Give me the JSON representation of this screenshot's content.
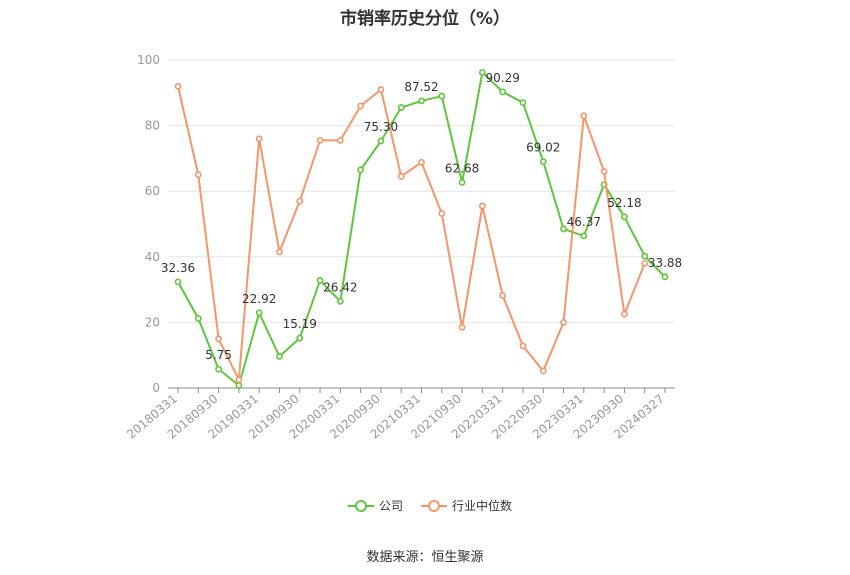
{
  "chart_data": {
    "type": "line",
    "title": "市销率历史分位（%）",
    "xlabel": "",
    "ylabel": "",
    "ylim": [
      0,
      100
    ],
    "yticks": [
      0,
      20,
      40,
      60,
      80,
      100
    ],
    "grid": true,
    "legend_position": "bottom",
    "x": [
      "20180331",
      "20180630",
      "20180930",
      "20181231",
      "20190331",
      "20190630",
      "20190930",
      "20191231",
      "20200331",
      "20200630",
      "20200930",
      "20201231",
      "20210331",
      "20210630",
      "20210930",
      "20211231",
      "20220331",
      "20220630",
      "20220930",
      "20221231",
      "20230331",
      "20230630",
      "20230930",
      "20231231",
      "20240327"
    ],
    "xtick_labels": [
      "20180331",
      "20180930",
      "20190331",
      "20190930",
      "20200331",
      "20200930",
      "20210331",
      "20210930",
      "20220331",
      "20220930",
      "20230331",
      "20230930",
      "20240327"
    ],
    "series": [
      {
        "name": "公司",
        "color": "#5ec63a",
        "values": [
          32.36,
          21.2,
          5.75,
          0.8,
          22.92,
          9.6,
          15.19,
          32.8,
          26.42,
          66.5,
          75.3,
          85.5,
          87.52,
          89.0,
          62.68,
          96.2,
          90.29,
          87.0,
          69.02,
          48.5,
          46.37,
          62.0,
          52.18,
          40.2,
          33.88
        ],
        "labels": [
          "32.36",
          null,
          "5.75",
          null,
          "22.92",
          null,
          "15.19",
          null,
          "26.42",
          null,
          "75.30",
          null,
          "87.52",
          null,
          "62.68",
          null,
          "90.29",
          null,
          "69.02",
          null,
          "46.37",
          null,
          "52.18",
          null,
          "33.88"
        ]
      },
      {
        "name": "行业中位数",
        "color": "#f5956a",
        "values": [
          92.0,
          65.0,
          15.0,
          2.5,
          76.0,
          41.5,
          57.0,
          75.5,
          75.5,
          86.0,
          91.0,
          64.5,
          68.8,
          53.2,
          18.5,
          55.5,
          28.2,
          12.8,
          5.2,
          20.0,
          83.0,
          66.0,
          22.5,
          38.0,
          null
        ]
      }
    ],
    "source_text": "数据来源：恒生聚源"
  }
}
